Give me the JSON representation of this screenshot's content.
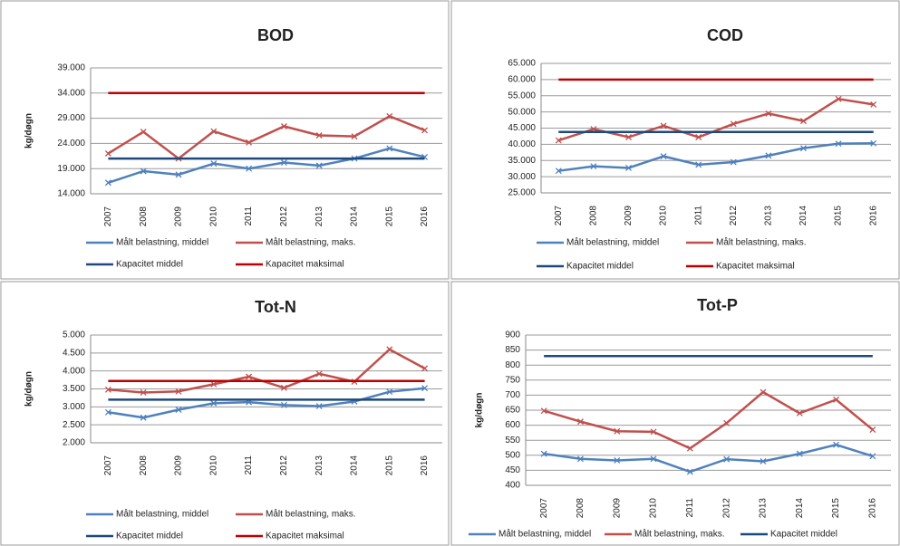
{
  "chart_data": [
    {
      "type": "line",
      "title": "BOD",
      "y_label": "kg/døgn",
      "categories": [
        "2007",
        "2008",
        "2009",
        "2010",
        "2011",
        "2012",
        "2013",
        "2014",
        "2015",
        "2016"
      ],
      "ylim": [
        14000,
        39000
      ],
      "yticks": [
        {
          "value": 14000,
          "label": "14.000"
        },
        {
          "value": 19000,
          "label": "19.000"
        },
        {
          "value": 24000,
          "label": "24.000"
        },
        {
          "value": 29000,
          "label": "29.000"
        },
        {
          "value": 34000,
          "label": "34.000"
        },
        {
          "value": 39000,
          "label": "39.000"
        }
      ],
      "grid": true,
      "series": [
        {
          "name": "Målt belastning, middel",
          "color": "#4f81bd",
          "marker": "x",
          "values": [
            16200,
            18500,
            17800,
            20000,
            19000,
            20200,
            19600,
            21000,
            23000,
            21300
          ]
        },
        {
          "name": "Målt belastning, maks.",
          "color": "#c0504d",
          "marker": "x",
          "values": [
            22000,
            26300,
            21000,
            26400,
            24200,
            27400,
            25600,
            25400,
            29400,
            26600
          ]
        },
        {
          "name": "Kapacitet middel",
          "color": "#1f497d",
          "values": [
            21000,
            21000,
            21000,
            21000,
            21000,
            21000,
            21000,
            21000,
            21000,
            21000
          ]
        },
        {
          "name": "Kapacitet maksimal",
          "color": "#c00000",
          "values": [
            34000,
            34000,
            34000,
            34000,
            34000,
            34000,
            34000,
            34000,
            34000,
            34000
          ]
        }
      ]
    },
    {
      "type": "line",
      "title": "COD",
      "categories": [
        "2007",
        "2008",
        "2009",
        "2010",
        "2011",
        "2012",
        "2013",
        "2014",
        "2015",
        "2016"
      ],
      "ylim": [
        25000,
        65000
      ],
      "yticks": [
        {
          "value": 25000,
          "label": "25.000"
        },
        {
          "value": 30000,
          "label": "30.000"
        },
        {
          "value": 35000,
          "label": "35.000"
        },
        {
          "value": 40000,
          "label": "40.000"
        },
        {
          "value": 45000,
          "label": "45.000"
        },
        {
          "value": 50000,
          "label": "50.000"
        },
        {
          "value": 55000,
          "label": "55.000"
        },
        {
          "value": 60000,
          "label": "60.000"
        },
        {
          "value": 65000,
          "label": "65.000"
        }
      ],
      "grid": true,
      "series": [
        {
          "name": "Målt belastning, middel",
          "color": "#4f81bd",
          "marker": "x",
          "values": [
            31800,
            33200,
            32700,
            36300,
            33700,
            34500,
            36500,
            38800,
            40200,
            40300
          ]
        },
        {
          "name": "Målt belastning, maks.",
          "color": "#c0504d",
          "marker": "x",
          "values": [
            41200,
            44700,
            42200,
            45700,
            42200,
            46300,
            49500,
            47200,
            54000,
            52300
          ]
        },
        {
          "name": "Kapacitet middel",
          "color": "#1f497d",
          "values": [
            43800,
            43800,
            43800,
            43800,
            43800,
            43800,
            43800,
            43800,
            43800,
            43800
          ]
        },
        {
          "name": "Kapacitet maksimal",
          "color": "#c00000",
          "values": [
            60000,
            60000,
            60000,
            60000,
            60000,
            60000,
            60000,
            60000,
            60000,
            60000
          ]
        }
      ]
    },
    {
      "type": "line",
      "title": "Tot-N",
      "y_label": "kg/døgn",
      "categories": [
        "2007",
        "2008",
        "2009",
        "2010",
        "2011",
        "2012",
        "2013",
        "2014",
        "2015",
        "2016"
      ],
      "ylim": [
        2000,
        5000
      ],
      "yticks": [
        {
          "value": 2000,
          "label": "2.000"
        },
        {
          "value": 2500,
          "label": "2.500"
        },
        {
          "value": 3000,
          "label": "3.000"
        },
        {
          "value": 3500,
          "label": "3.500"
        },
        {
          "value": 4000,
          "label": "4.000"
        },
        {
          "value": 4500,
          "label": "4.500"
        },
        {
          "value": 5000,
          "label": "5.000"
        }
      ],
      "grid": true,
      "series": [
        {
          "name": "Målt belastning, middel",
          "color": "#4f81bd",
          "marker": "x",
          "values": [
            2850,
            2700,
            2920,
            3100,
            3130,
            3050,
            3020,
            3150,
            3420,
            3520
          ]
        },
        {
          "name": "Målt belastning, maks.",
          "color": "#c0504d",
          "marker": "x",
          "values": [
            3480,
            3400,
            3430,
            3630,
            3840,
            3530,
            3920,
            3700,
            4600,
            4070
          ]
        },
        {
          "name": "Kapacitet middel",
          "color": "#1f497d",
          "values": [
            3200,
            3200,
            3200,
            3200,
            3200,
            3200,
            3200,
            3200,
            3200,
            3200
          ]
        },
        {
          "name": "Kapacitet maksimal",
          "color": "#c00000",
          "values": [
            3720,
            3720,
            3720,
            3720,
            3720,
            3720,
            3720,
            3720,
            3720,
            3720
          ]
        }
      ]
    },
    {
      "type": "line",
      "title": "Tot-P",
      "y_label": "kg/døgn",
      "categories": [
        "2007",
        "2008",
        "2009",
        "2010",
        "2011",
        "2012",
        "2013",
        "2014",
        "2015",
        "2016"
      ],
      "ylim": [
        400,
        900
      ],
      "yticks": [
        400,
        450,
        500,
        550,
        600,
        650,
        700,
        750,
        800,
        850,
        900
      ],
      "grid": true,
      "series": [
        {
          "name": "Målt belastning, middel",
          "color": "#4f81bd",
          "marker": "x",
          "values": [
            505,
            488,
            483,
            488,
            445,
            487,
            480,
            505,
            535,
            497
          ]
        },
        {
          "name": "Målt belastning, maks.",
          "color": "#c0504d",
          "marker": "x",
          "values": [
            648,
            612,
            580,
            578,
            523,
            607,
            710,
            640,
            685,
            585
          ]
        },
        {
          "name": "Kapacitet middel",
          "color": "#1f497d",
          "values": [
            830,
            830,
            830,
            830,
            830,
            830,
            830,
            830,
            830,
            830
          ]
        }
      ]
    }
  ]
}
